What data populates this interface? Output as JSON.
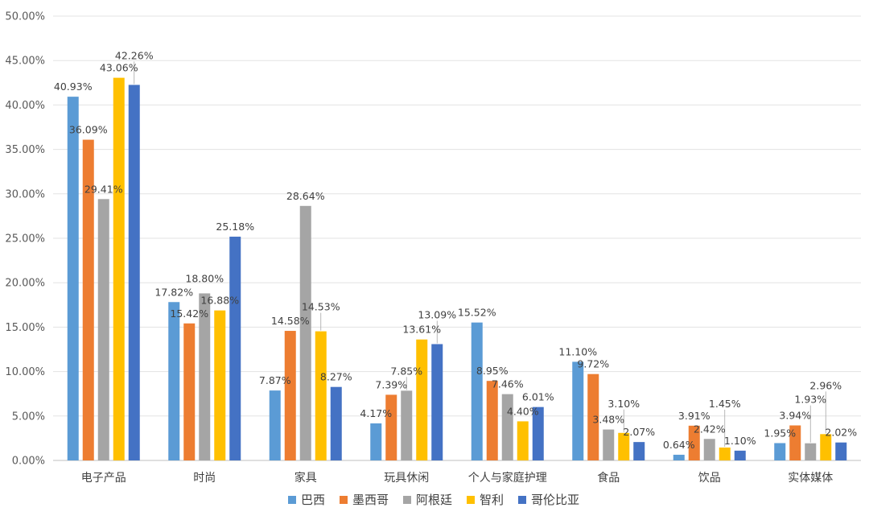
{
  "chart_data": {
    "type": "bar",
    "title": "",
    "xlabel": "",
    "ylabel": "",
    "ylim": [
      0,
      50
    ],
    "ytick_step": 5,
    "ytick_labels": [
      "0.00%",
      "5.00%",
      "10.00%",
      "15.00%",
      "20.00%",
      "25.00%",
      "30.00%",
      "35.00%",
      "40.00%",
      "45.00%",
      "50.00%"
    ],
    "grid": true,
    "legend_position": "bottom",
    "categories": [
      "电子产品",
      "时尚",
      "家具",
      "玩具休闲",
      "个人与家庭护理",
      "食品",
      "饮品",
      "实体媒体"
    ],
    "series": [
      {
        "name": "巴西",
        "color": "#5B9BD5",
        "values": [
          40.93,
          17.82,
          7.87,
          4.17,
          15.52,
          11.1,
          0.64,
          1.95
        ],
        "labels": [
          "40.93%",
          "17.82%",
          "7.87%",
          "4.17%",
          "15.52%",
          "11.10%",
          "0.64%",
          "1.95%"
        ]
      },
      {
        "name": "墨西哥",
        "color": "#ED7D31",
        "values": [
          36.09,
          15.42,
          14.58,
          7.39,
          8.95,
          9.72,
          3.91,
          3.94
        ],
        "labels": [
          "36.09%",
          "15.42%",
          "14.58%",
          "7.39%",
          "8.95%",
          "9.72%",
          "3.91%",
          "3.94%"
        ]
      },
      {
        "name": "阿根廷",
        "color": "#A5A5A5",
        "values": [
          29.41,
          18.8,
          28.64,
          7.85,
          7.46,
          3.48,
          2.42,
          1.93
        ],
        "labels": [
          "29.41%",
          "18.80%",
          "28.64%",
          "7.85%",
          "7.46%",
          "3.48%",
          "2.42%",
          "1.93%"
        ]
      },
      {
        "name": "智利",
        "color": "#FFC000",
        "values": [
          43.06,
          16.88,
          14.53,
          13.61,
          4.4,
          3.1,
          1.45,
          2.96
        ],
        "labels": [
          "43.06%",
          "16.88%",
          "14.53%",
          "13.61%",
          "4.40%",
          "3.10%",
          "1.45%",
          "2.96%"
        ]
      },
      {
        "name": "哥伦比亚",
        "color": "#4472C4",
        "values": [
          42.26,
          25.18,
          8.27,
          13.09,
          6.01,
          2.07,
          1.1,
          2.02
        ],
        "labels": [
          "42.26%",
          "25.18%",
          "8.27%",
          "13.09%",
          "6.01%",
          "2.07%",
          "1.10%",
          "2.02%"
        ]
      }
    ]
  }
}
